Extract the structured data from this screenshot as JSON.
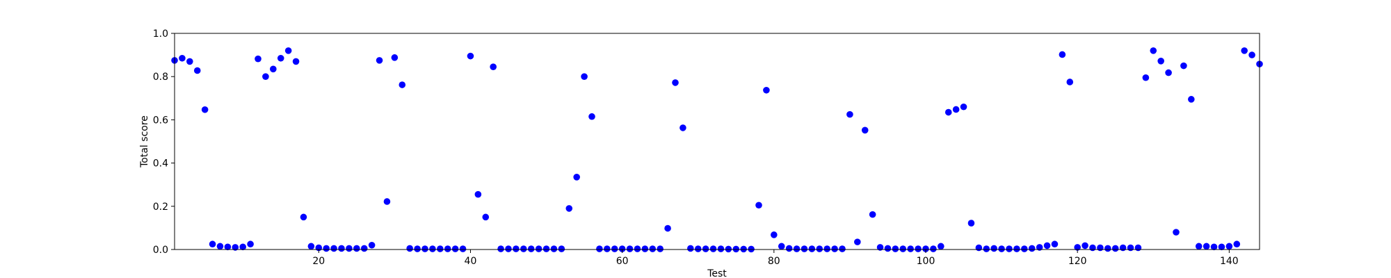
{
  "chart_data": {
    "type": "scatter",
    "xlabel": "Test",
    "ylabel": "Total score",
    "xlim": [
      1,
      144
    ],
    "ylim": [
      0.0,
      1.0
    ],
    "x_ticks": [
      20,
      40,
      60,
      80,
      100,
      120,
      140
    ],
    "y_ticks": [
      "0.0",
      "0.2",
      "0.4",
      "0.6",
      "0.8",
      "1.0"
    ],
    "grid": false,
    "marker_color": "#0000ff",
    "x": [
      1,
      2,
      3,
      4,
      5,
      6,
      7,
      8,
      9,
      10,
      11,
      12,
      13,
      14,
      15,
      16,
      17,
      18,
      19,
      20,
      21,
      22,
      23,
      24,
      25,
      26,
      27,
      28,
      29,
      30,
      31,
      32,
      33,
      34,
      35,
      36,
      37,
      38,
      39,
      40,
      41,
      42,
      43,
      44,
      45,
      46,
      47,
      48,
      49,
      50,
      51,
      52,
      53,
      54,
      55,
      56,
      57,
      58,
      59,
      60,
      61,
      62,
      63,
      64,
      65,
      66,
      67,
      68,
      69,
      70,
      71,
      72,
      73,
      74,
      75,
      76,
      77,
      78,
      79,
      80,
      81,
      82,
      83,
      84,
      85,
      86,
      87,
      88,
      89,
      90,
      91,
      92,
      93,
      94,
      95,
      96,
      97,
      98,
      99,
      100,
      101,
      102,
      103,
      104,
      105,
      106,
      107,
      108,
      109,
      110,
      111,
      112,
      113,
      114,
      115,
      116,
      117,
      118,
      119,
      120,
      121,
      122,
      123,
      124,
      125,
      126,
      127,
      128,
      129,
      130,
      131,
      132,
      133,
      134,
      135,
      136,
      137,
      138,
      139,
      140,
      141,
      142,
      143,
      144
    ],
    "y": [
      0.875,
      0.885,
      0.87,
      0.828,
      0.647,
      0.025,
      0.015,
      0.012,
      0.01,
      0.012,
      0.025,
      0.882,
      0.8,
      0.835,
      0.885,
      0.92,
      0.87,
      0.15,
      0.015,
      0.008,
      0.005,
      0.005,
      0.005,
      0.005,
      0.005,
      0.005,
      0.02,
      0.875,
      0.222,
      0.888,
      0.762,
      0.005,
      0.003,
      0.003,
      0.003,
      0.003,
      0.003,
      0.003,
      0.003,
      0.895,
      0.255,
      0.15,
      0.845,
      0.003,
      0.003,
      0.003,
      0.003,
      0.003,
      0.003,
      0.003,
      0.003,
      0.003,
      0.19,
      0.335,
      0.8,
      0.615,
      0.003,
      0.003,
      0.003,
      0.003,
      0.003,
      0.003,
      0.003,
      0.003,
      0.003,
      0.098,
      0.772,
      0.563,
      0.005,
      0.003,
      0.003,
      0.003,
      0.003,
      0.002,
      0.002,
      0.002,
      0.002,
      0.205,
      0.737,
      0.068,
      0.015,
      0.005,
      0.003,
      0.003,
      0.003,
      0.003,
      0.003,
      0.003,
      0.003,
      0.625,
      0.035,
      0.552,
      0.162,
      0.01,
      0.005,
      0.003,
      0.003,
      0.003,
      0.003,
      0.003,
      0.003,
      0.015,
      0.635,
      0.648,
      0.66,
      0.122,
      0.008,
      0.003,
      0.005,
      0.003,
      0.003,
      0.003,
      0.003,
      0.005,
      0.01,
      0.018,
      0.025,
      0.902,
      0.775,
      0.01,
      0.018,
      0.008,
      0.008,
      0.005,
      0.005,
      0.008,
      0.008,
      0.008,
      0.795,
      0.92,
      0.872,
      0.818,
      0.08,
      0.85,
      0.695,
      0.015,
      0.015,
      0.012,
      0.012,
      0.015,
      0.025,
      0.92,
      0.9,
      0.858
    ]
  }
}
